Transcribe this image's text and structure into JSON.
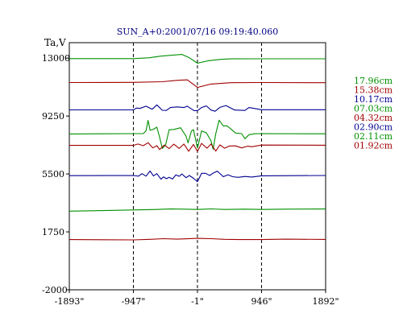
{
  "chart_data": {
    "type": "line",
    "title": "SUN_A+0:2001/07/16 09:19:40.060",
    "ylabel": "Ta,V",
    "x_ticks": [
      "-1893\"",
      "-947\"",
      "-1\"",
      "946\"",
      "1892\""
    ],
    "y_ticks": [
      "13000",
      "9250",
      "5500",
      "1750",
      "-2000"
    ],
    "xlim": [
      -1893,
      1892
    ],
    "ylim": [
      -2000,
      14000
    ],
    "grid": "dashed vertical lines at -947\", -1\", 946\"",
    "legend_position": "right",
    "series": [
      {
        "name": "17.96cm",
        "color": "#009000",
        "points": [
          [
            -1893,
            12970
          ],
          [
            -947,
            12970
          ],
          [
            -720,
            13020
          ],
          [
            -540,
            13130
          ],
          [
            -430,
            13170
          ],
          [
            -230,
            13240
          ],
          [
            -120,
            13020
          ],
          [
            -1,
            12670
          ],
          [
            150,
            12820
          ],
          [
            350,
            12920
          ],
          [
            500,
            12950
          ],
          [
            946,
            12960
          ],
          [
            1892,
            12960
          ]
        ]
      },
      {
        "name": "15.38cm",
        "color": "#a00000",
        "points": [
          [
            -1893,
            11420
          ],
          [
            -947,
            11430
          ],
          [
            -520,
            11470
          ],
          [
            -300,
            11560
          ],
          [
            -150,
            11590
          ],
          [
            -1,
            11100
          ],
          [
            200,
            11320
          ],
          [
            500,
            11410
          ],
          [
            946,
            11420
          ],
          [
            1892,
            11410
          ]
        ]
      },
      {
        "name": "10.17cm",
        "color": "#000090",
        "points": [
          [
            -1893,
            9650
          ],
          [
            -947,
            9650
          ],
          [
            -900,
            9770
          ],
          [
            -850,
            9740
          ],
          [
            -760,
            9890
          ],
          [
            -670,
            9690
          ],
          [
            -600,
            9970
          ],
          [
            -520,
            9620
          ],
          [
            -460,
            9610
          ],
          [
            -400,
            9800
          ],
          [
            -300,
            9840
          ],
          [
            -200,
            9800
          ],
          [
            -150,
            9890
          ],
          [
            -50,
            9600
          ],
          [
            -1,
            9600
          ],
          [
            60,
            9800
          ],
          [
            130,
            9910
          ],
          [
            200,
            9640
          ],
          [
            260,
            9560
          ],
          [
            330,
            9810
          ],
          [
            420,
            9930
          ],
          [
            550,
            9640
          ],
          [
            700,
            9610
          ],
          [
            760,
            9800
          ],
          [
            820,
            9760
          ],
          [
            946,
            9660
          ],
          [
            1892,
            9660
          ]
        ]
      },
      {
        "name": "07.03cm",
        "color": "#009000",
        "points": [
          [
            -1893,
            8090
          ],
          [
            -947,
            8110
          ],
          [
            -800,
            8110
          ],
          [
            -760,
            8300
          ],
          [
            -730,
            8970
          ],
          [
            -700,
            8330
          ],
          [
            -650,
            8390
          ],
          [
            -600,
            8530
          ],
          [
            -560,
            7880
          ],
          [
            -520,
            7150
          ],
          [
            -470,
            7400
          ],
          [
            -420,
            8360
          ],
          [
            -350,
            8380
          ],
          [
            -250,
            8490
          ],
          [
            -170,
            7950
          ],
          [
            -140,
            7510
          ],
          [
            -90,
            8280
          ],
          [
            -60,
            8370
          ],
          [
            -1,
            7180
          ],
          [
            60,
            8290
          ],
          [
            130,
            8170
          ],
          [
            200,
            7640
          ],
          [
            230,
            7100
          ],
          [
            270,
            8110
          ],
          [
            320,
            8980
          ],
          [
            380,
            8610
          ],
          [
            430,
            8620
          ],
          [
            480,
            8460
          ],
          [
            560,
            8150
          ],
          [
            650,
            8110
          ],
          [
            700,
            7780
          ],
          [
            760,
            8040
          ],
          [
            840,
            8100
          ],
          [
            946,
            8110
          ],
          [
            1892,
            8100
          ]
        ]
      },
      {
        "name": "04.32cm",
        "color": "#a00000",
        "points": [
          [
            -1893,
            7350
          ],
          [
            -947,
            7350
          ],
          [
            -880,
            7440
          ],
          [
            -800,
            7330
          ],
          [
            -730,
            7520
          ],
          [
            -660,
            7190
          ],
          [
            -600,
            7330
          ],
          [
            -560,
            7080
          ],
          [
            -490,
            7370
          ],
          [
            -420,
            7140
          ],
          [
            -350,
            7430
          ],
          [
            -270,
            7150
          ],
          [
            -200,
            7440
          ],
          [
            -130,
            6970
          ],
          [
            -60,
            7410
          ],
          [
            -1,
            6960
          ],
          [
            60,
            7480
          ],
          [
            140,
            7170
          ],
          [
            200,
            7440
          ],
          [
            270,
            6980
          ],
          [
            330,
            7380
          ],
          [
            400,
            7170
          ],
          [
            470,
            7310
          ],
          [
            560,
            7320
          ],
          [
            650,
            7190
          ],
          [
            740,
            7300
          ],
          [
            800,
            7260
          ],
          [
            946,
            7370
          ],
          [
            1892,
            7360
          ]
        ]
      },
      {
        "name": "02.90cm",
        "color": "#000090",
        "points": [
          [
            -1893,
            5390
          ],
          [
            -947,
            5400
          ],
          [
            -870,
            5360
          ],
          [
            -820,
            5520
          ],
          [
            -760,
            5360
          ],
          [
            -700,
            5690
          ],
          [
            -650,
            5370
          ],
          [
            -600,
            5520
          ],
          [
            -540,
            5160
          ],
          [
            -500,
            5310
          ],
          [
            -460,
            5190
          ],
          [
            -420,
            5280
          ],
          [
            -370,
            5170
          ],
          [
            -320,
            5440
          ],
          [
            -270,
            5350
          ],
          [
            -230,
            5500
          ],
          [
            -170,
            5260
          ],
          [
            -120,
            5400
          ],
          [
            -60,
            5220
          ],
          [
            -1,
            5000
          ],
          [
            60,
            5540
          ],
          [
            120,
            5540
          ],
          [
            180,
            5400
          ],
          [
            230,
            5550
          ],
          [
            290,
            5680
          ],
          [
            330,
            5530
          ],
          [
            380,
            5320
          ],
          [
            450,
            5450
          ],
          [
            520,
            5320
          ],
          [
            600,
            5280
          ],
          [
            700,
            5340
          ],
          [
            800,
            5300
          ],
          [
            946,
            5380
          ],
          [
            1892,
            5400
          ]
        ]
      },
      {
        "name": "02.11cm",
        "color": "#009000",
        "points": [
          [
            -1893,
            3090
          ],
          [
            -1400,
            3130
          ],
          [
            -947,
            3170
          ],
          [
            -600,
            3200
          ],
          [
            -400,
            3230
          ],
          [
            -200,
            3220
          ],
          [
            -1,
            3200
          ],
          [
            200,
            3240
          ],
          [
            400,
            3200
          ],
          [
            700,
            3220
          ],
          [
            946,
            3200
          ],
          [
            1300,
            3220
          ],
          [
            1892,
            3230
          ]
        ]
      },
      {
        "name": "01.92cm",
        "color": "#a00000",
        "points": [
          [
            -1893,
            1250
          ],
          [
            -1400,
            1240
          ],
          [
            -947,
            1230
          ],
          [
            -700,
            1270
          ],
          [
            -500,
            1310
          ],
          [
            -300,
            1280
          ],
          [
            -1,
            1330
          ],
          [
            200,
            1310
          ],
          [
            400,
            1270
          ],
          [
            600,
            1250
          ],
          [
            946,
            1250
          ],
          [
            1300,
            1280
          ],
          [
            1892,
            1260
          ]
        ]
      }
    ]
  }
}
